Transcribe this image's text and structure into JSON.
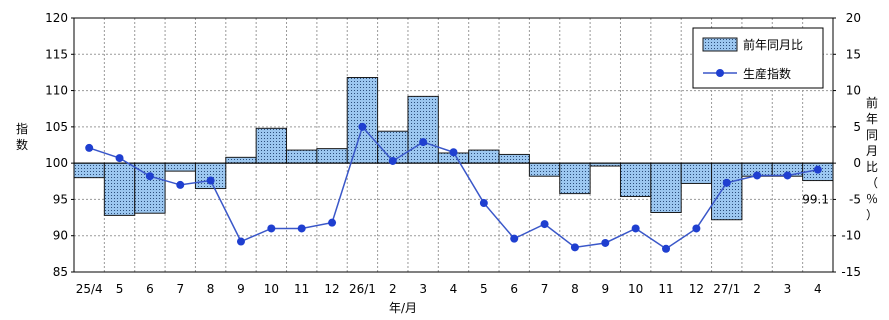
{
  "chart_data": {
    "type": "bar+line",
    "categories": [
      "25/4",
      "5",
      "6",
      "7",
      "8",
      "9",
      "10",
      "11",
      "12",
      "26/1",
      "2",
      "3",
      "4",
      "5",
      "6",
      "7",
      "8",
      "9",
      "10",
      "11",
      "12",
      "27/1",
      "2",
      "3",
      "4"
    ],
    "x_title": "年/月",
    "y_left": {
      "label": "指数",
      "min": 85,
      "max": 120,
      "step": 5,
      "ticks": [
        "85",
        "90",
        "95",
        "100",
        "105",
        "110",
        "115",
        "120"
      ]
    },
    "y_right": {
      "label": "前年同月比（％）",
      "min": -15,
      "max": 20,
      "step": 5,
      "ticks": [
        "-15",
        "-10",
        "-5",
        "0",
        "5",
        "10",
        "15",
        "20"
      ]
    },
    "series": [
      {
        "name": "前年同月比",
        "type": "bar",
        "axis": "right",
        "values": [
          -2.0,
          -7.2,
          -6.9,
          -1.1,
          -3.5,
          0.8,
          4.8,
          1.8,
          2.0,
          11.8,
          4.4,
          9.2,
          1.4,
          1.8,
          1.2,
          -1.8,
          -4.2,
          -0.4,
          -4.6,
          -6.8,
          -2.8,
          -7.8,
          -1.8,
          -1.8,
          -2.4
        ]
      },
      {
        "name": "生産指数",
        "type": "line",
        "axis": "left",
        "values": [
          102.1,
          100.7,
          98.2,
          97.0,
          97.6,
          89.2,
          91.0,
          91.0,
          91.8,
          105.0,
          100.3,
          102.9,
          101.5,
          94.5,
          89.6,
          91.6,
          88.4,
          89.0,
          91.0,
          88.2,
          91.0,
          97.3,
          98.3,
          98.3,
          99.1
        ]
      }
    ],
    "annotation": "99.1",
    "legend_position": "top-right",
    "grid": true,
    "colors": {
      "bar_fill": "#9cc7f0",
      "bar_stroke": "#1a1a1a",
      "line": "#3a57c9",
      "marker": "#1f3fd0"
    }
  }
}
